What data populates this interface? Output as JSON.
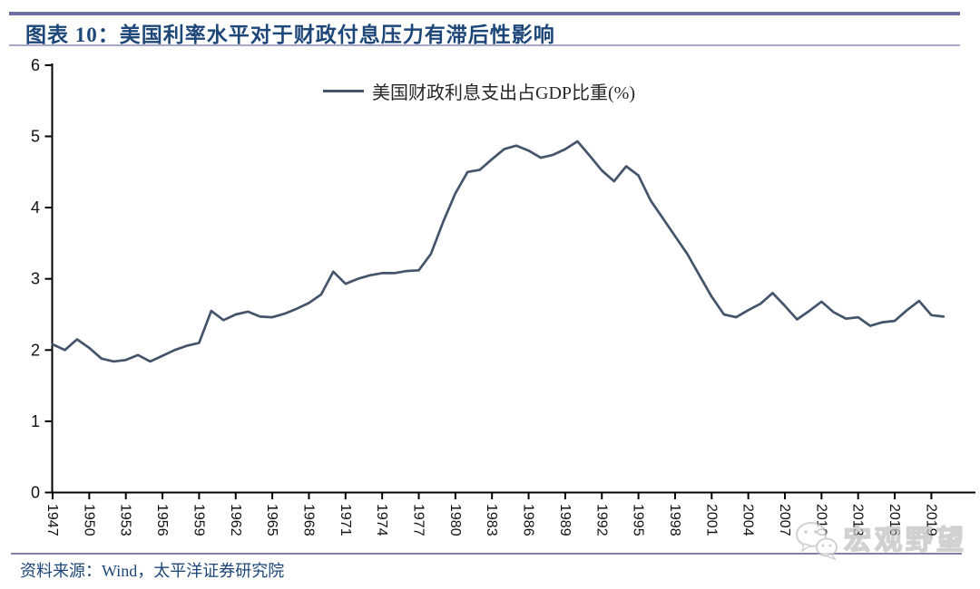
{
  "header": {
    "title": "图表 10：美国利率水平对于财政付息压力有滞后性影响",
    "accent_color": "#1d4679",
    "rule_color": "#6e6ea2"
  },
  "legend": {
    "label": "美国财政利息支出占GDP比重(%)",
    "swatch_color": "#44546A"
  },
  "source": {
    "text": "资料来源：Wind，太平洋证券研究院"
  },
  "watermark": {
    "icon": "wechat-logo",
    "text": "宏观野望"
  },
  "chart_data": {
    "type": "line",
    "title": "",
    "xlabel": "",
    "ylabel": "",
    "ylim": [
      0,
      6
    ],
    "y_ticks": [
      0,
      1,
      2,
      3,
      4,
      5,
      6
    ],
    "x_ticks": [
      1947,
      1950,
      1953,
      1956,
      1959,
      1962,
      1965,
      1968,
      1971,
      1974,
      1977,
      1980,
      1983,
      1986,
      1989,
      1992,
      1995,
      1998,
      2001,
      2004,
      2007,
      2010,
      2013,
      2016,
      2019
    ],
    "grid": false,
    "legend_position": "top-center",
    "axis_color": "#000000",
    "series": [
      {
        "name": "美国财政利息支出占GDP比重(%)",
        "color": "#44546A",
        "start_year": 1947,
        "values": [
          2.08,
          2.0,
          2.15,
          2.03,
          1.88,
          1.84,
          1.86,
          1.93,
          1.84,
          1.92,
          2.0,
          2.06,
          2.1,
          2.55,
          2.42,
          2.5,
          2.54,
          2.47,
          2.46,
          2.51,
          2.58,
          2.66,
          2.78,
          3.1,
          2.93,
          3.0,
          3.05,
          3.08,
          3.08,
          3.11,
          3.12,
          3.35,
          3.8,
          4.2,
          4.5,
          4.53,
          4.68,
          4.82,
          4.87,
          4.8,
          4.7,
          4.74,
          4.82,
          4.93,
          4.73,
          4.52,
          4.37,
          4.58,
          4.45,
          4.1,
          3.85,
          3.6,
          3.35,
          3.05,
          2.75,
          2.5,
          2.46,
          2.56,
          2.65,
          2.8,
          2.62,
          2.43,
          2.55,
          2.68,
          2.53,
          2.44,
          2.46,
          2.34,
          2.39,
          2.41,
          2.56,
          2.69,
          2.49,
          2.47
        ]
      }
    ]
  }
}
